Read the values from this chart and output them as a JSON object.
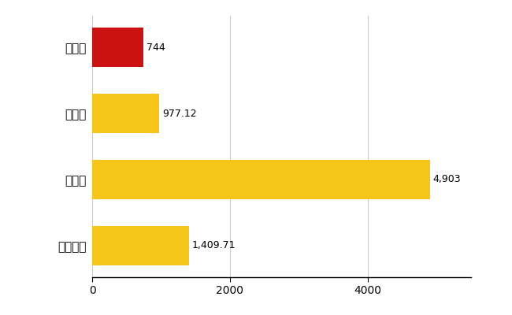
{
  "categories": [
    "大野町",
    "県平均",
    "県最大",
    "全国平均"
  ],
  "values": [
    744,
    977.12,
    4903,
    1409.71
  ],
  "bar_colors": [
    "#cc1111",
    "#f5c518",
    "#f5c518",
    "#f5c518"
  ],
  "value_labels": [
    "744",
    "977.12",
    "4,903",
    "1,409.71"
  ],
  "xlim": [
    0,
    5500
  ],
  "xticks": [
    0,
    2000,
    4000
  ],
  "background_color": "#ffffff",
  "grid_color": "#cccccc",
  "label_fontsize": 11,
  "tick_fontsize": 10,
  "value_label_fontsize": 9
}
